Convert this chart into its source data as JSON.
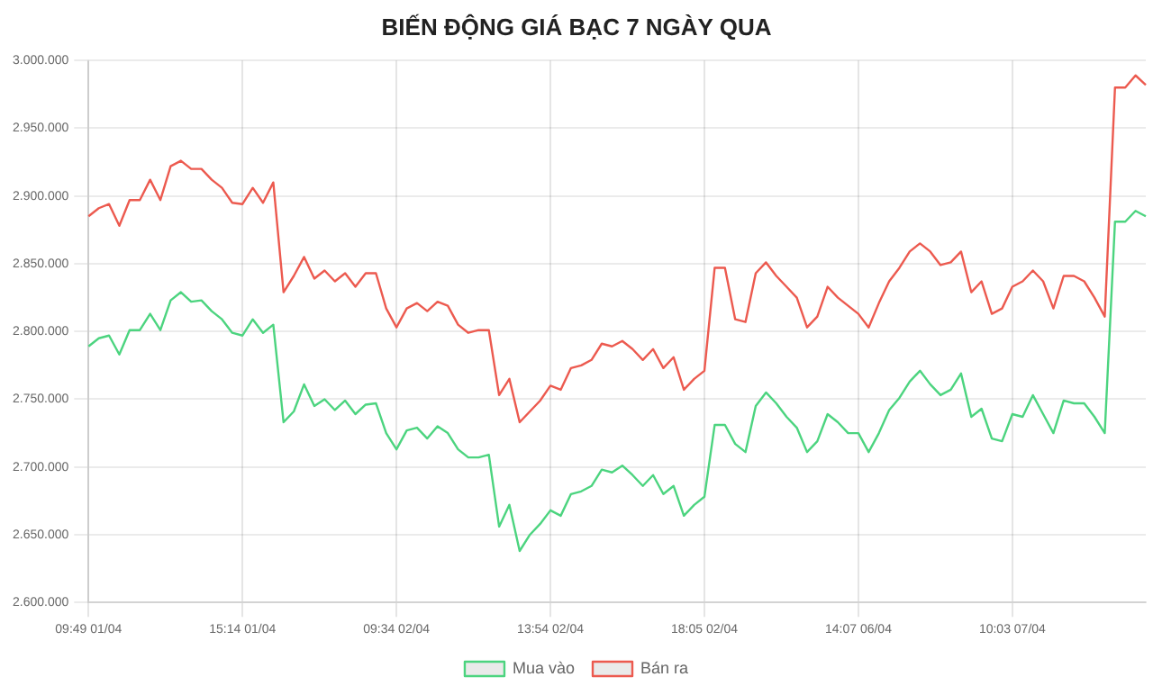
{
  "chart_data": {
    "type": "line",
    "title": "BIẾN ĐỘNG GIÁ BẠC 7 NGÀY QUA",
    "categories": [
      "09:49 01/04",
      null,
      null,
      null,
      null,
      null,
      null,
      null,
      null,
      null,
      null,
      null,
      null,
      null,
      null,
      "15:14 01/04",
      null,
      null,
      null,
      null,
      null,
      null,
      null,
      null,
      null,
      null,
      null,
      null,
      null,
      null,
      "09:34 02/04",
      null,
      null,
      null,
      null,
      null,
      null,
      null,
      null,
      null,
      null,
      null,
      null,
      null,
      null,
      "13:54 02/04",
      null,
      null,
      null,
      null,
      null,
      null,
      null,
      null,
      null,
      null,
      null,
      null,
      null,
      null,
      "18:05 02/04",
      null,
      null,
      null,
      null,
      null,
      null,
      null,
      null,
      null,
      null,
      null,
      null,
      null,
      null,
      "14:07 06/04",
      null,
      null,
      null,
      null,
      null,
      null,
      null,
      null,
      null,
      null,
      null,
      null,
      null,
      null,
      "10:03 07/04",
      null,
      null,
      null,
      null,
      null,
      null,
      null,
      null,
      null,
      null,
      null,
      null,
      null
    ],
    "series": [
      {
        "name": "Mua vào",
        "color": "#4cd47f",
        "values": [
          2789000,
          2795000,
          2797000,
          2783000,
          2801000,
          2801000,
          2813000,
          2801000,
          2823000,
          2829000,
          2822000,
          2823000,
          2815000,
          2809000,
          2799000,
          2797000,
          2809000,
          2799000,
          2805000,
          2733000,
          2741000,
          2761000,
          2745000,
          2750000,
          2742000,
          2749000,
          2739000,
          2746000,
          2747000,
          2725000,
          2713000,
          2727000,
          2729000,
          2721000,
          2730000,
          2725000,
          2713000,
          2707000,
          2707000,
          2709000,
          2656000,
          2672000,
          2638000,
          2650000,
          2658000,
          2668000,
          2664000,
          2680000,
          2682000,
          2686000,
          2698000,
          2696000,
          2701000,
          2694000,
          2686000,
          2694000,
          2680000,
          2686000,
          2664000,
          2672000,
          2678000,
          2731000,
          2731000,
          2717000,
          2711000,
          2745000,
          2755000,
          2747000,
          2737000,
          2729000,
          2711000,
          2719000,
          2739000,
          2733000,
          2725000,
          2725000,
          2711000,
          2725000,
          2742000,
          2751000,
          2763000,
          2771000,
          2761000,
          2753000,
          2757000,
          2769000,
          2737000,
          2743000,
          2721000,
          2719000,
          2739000,
          2737000,
          2753000,
          2739000,
          2725000,
          2749000,
          2747000,
          2747000,
          2737000,
          2725000,
          2881000,
          2881000,
          2889000,
          2885000
        ]
      },
      {
        "name": "Bán ra",
        "color": "#ec5a4f",
        "values": [
          2885000,
          2891000,
          2894000,
          2878000,
          2897000,
          2897000,
          2912000,
          2897000,
          2922000,
          2926000,
          2920000,
          2920000,
          2912000,
          2906000,
          2895000,
          2894000,
          2906000,
          2895000,
          2910000,
          2829000,
          2841000,
          2855000,
          2839000,
          2845000,
          2837000,
          2843000,
          2833000,
          2843000,
          2843000,
          2817000,
          2803000,
          2817000,
          2821000,
          2815000,
          2822000,
          2819000,
          2805000,
          2799000,
          2801000,
          2801000,
          2753000,
          2765000,
          2733000,
          2741000,
          2749000,
          2760000,
          2757000,
          2773000,
          2775000,
          2779000,
          2791000,
          2789000,
          2793000,
          2787000,
          2779000,
          2787000,
          2773000,
          2781000,
          2757000,
          2765000,
          2771000,
          2847000,
          2847000,
          2809000,
          2807000,
          2843000,
          2851000,
          2841000,
          2833000,
          2825000,
          2803000,
          2811000,
          2833000,
          2825000,
          2819000,
          2813000,
          2803000,
          2821000,
          2837000,
          2847000,
          2859000,
          2865000,
          2859000,
          2849000,
          2851000,
          2859000,
          2829000,
          2837000,
          2813000,
          2817000,
          2833000,
          2837000,
          2845000,
          2837000,
          2817000,
          2841000,
          2841000,
          2837000,
          2825000,
          2811000,
          2980000,
          2980000,
          2989000,
          2982000
        ]
      }
    ],
    "ylim": [
      2600000,
      3000000
    ],
    "yticks": [
      {
        "value": 2600000,
        "label": "2.600.000"
      },
      {
        "value": 2650000,
        "label": "2.650.000"
      },
      {
        "value": 2700000,
        "label": "2.700.000"
      },
      {
        "value": 2750000,
        "label": "2.750.000"
      },
      {
        "value": 2800000,
        "label": "2.800.000"
      },
      {
        "value": 2850000,
        "label": "2.850.000"
      },
      {
        "value": 2900000,
        "label": "2.900.000"
      },
      {
        "value": 2950000,
        "label": "2.950.000"
      },
      {
        "value": 3000000,
        "label": "3.000.000"
      }
    ],
    "grid": true,
    "legend": "bottom",
    "marker": "none",
    "line_style": "solid"
  }
}
